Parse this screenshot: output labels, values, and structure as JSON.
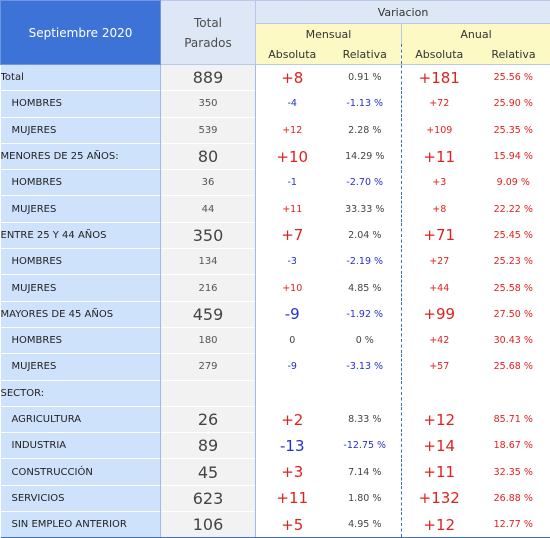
{
  "header": {
    "title": "Septiembre 2020",
    "total_line1": "Total",
    "total_line2": "Parados",
    "variacion": "Variacion",
    "mensual": "Mensual",
    "anual": "Anual",
    "absoluta": "Absoluta",
    "relativa": "Relativa"
  },
  "rows": [
    {
      "label": "Total",
      "total": "889",
      "m_abs": "+8",
      "m_rel": "0.91 %",
      "a_abs": "+181",
      "a_rel": "25.56 %"
    },
    {
      "label": "HOMBRES",
      "total": "350",
      "m_abs": "-4",
      "m_rel": "-1.13 %",
      "a_abs": "+72",
      "a_rel": "25.90 %"
    },
    {
      "label": "MUJERES",
      "total": "539",
      "m_abs": "+12",
      "m_rel": "2.28 %",
      "a_abs": "+109",
      "a_rel": "25.35 %"
    },
    {
      "label": "MENORES DE 25 AÑOS:",
      "total": "80",
      "m_abs": "+10",
      "m_rel": "14.29 %",
      "a_abs": "+11",
      "a_rel": "15.94 %"
    },
    {
      "label": "HOMBRES",
      "total": "36",
      "m_abs": "-1",
      "m_rel": "-2.70 %",
      "a_abs": "+3",
      "a_rel": "9.09 %"
    },
    {
      "label": "MUJERES",
      "total": "44",
      "m_abs": "+11",
      "m_rel": "33.33 %",
      "a_abs": "+8",
      "a_rel": "22.22 %"
    },
    {
      "label": "ENTRE 25 Y 44 AÑOS",
      "total": "350",
      "m_abs": "+7",
      "m_rel": "2.04 %",
      "a_abs": "+71",
      "a_rel": "25.45 %"
    },
    {
      "label": "HOMBRES",
      "total": "134",
      "m_abs": "-3",
      "m_rel": "-2.19 %",
      "a_abs": "+27",
      "a_rel": "25.23 %"
    },
    {
      "label": "MUJERES",
      "total": "216",
      "m_abs": "+10",
      "m_rel": "4.85 %",
      "a_abs": "+44",
      "a_rel": "25.58 %"
    },
    {
      "label": "MAYORES DE 45 AÑOS",
      "total": "459",
      "m_abs": "-9",
      "m_rel": "-1.92 %",
      "a_abs": "+99",
      "a_rel": "27.50 %"
    },
    {
      "label": "HOMBRES",
      "total": "180",
      "m_abs": "0",
      "m_rel": "0 %",
      "a_abs": "+42",
      "a_rel": "30.43 %"
    },
    {
      "label": "MUJERES",
      "total": "279",
      "m_abs": "-9",
      "m_rel": "-3.13 %",
      "a_abs": "+57",
      "a_rel": "25.68 %"
    },
    {
      "label": "SECTOR:",
      "total": "",
      "m_abs": "",
      "m_rel": "",
      "a_abs": "",
      "a_rel": ""
    },
    {
      "label": "AGRICULTURA",
      "total": "26",
      "m_abs": "+2",
      "m_rel": "8.33 %",
      "a_abs": "+12",
      "a_rel": "85.71 %"
    },
    {
      "label": "INDUSTRIA",
      "total": "89",
      "m_abs": "-13",
      "m_rel": "-12.75 %",
      "a_abs": "+14",
      "a_rel": "18.67 %"
    },
    {
      "label": "CONSTRUCCIÓN",
      "total": "45",
      "m_abs": "+3",
      "m_rel": "7.14 %",
      "a_abs": "+11",
      "a_rel": "32.35 %"
    },
    {
      "label": "SERVICIOS",
      "total": "623",
      "m_abs": "+11",
      "m_rel": "1.80 %",
      "a_abs": "+132",
      "a_rel": "26.88 %"
    },
    {
      "label": "SIN EMPLEO ANTERIOR",
      "total": "106",
      "m_abs": "+5",
      "m_rel": "4.95 %",
      "a_abs": "+12",
      "a_rel": "12.77 %"
    }
  ],
  "colors": {
    "positive": "#e0211e",
    "negative": "#2432c8",
    "neutral": "#444444",
    "header_blue": "#3d73d6",
    "label_bg": "#cfe2fb",
    "subheader_yellow": "#fdf9c5"
  }
}
